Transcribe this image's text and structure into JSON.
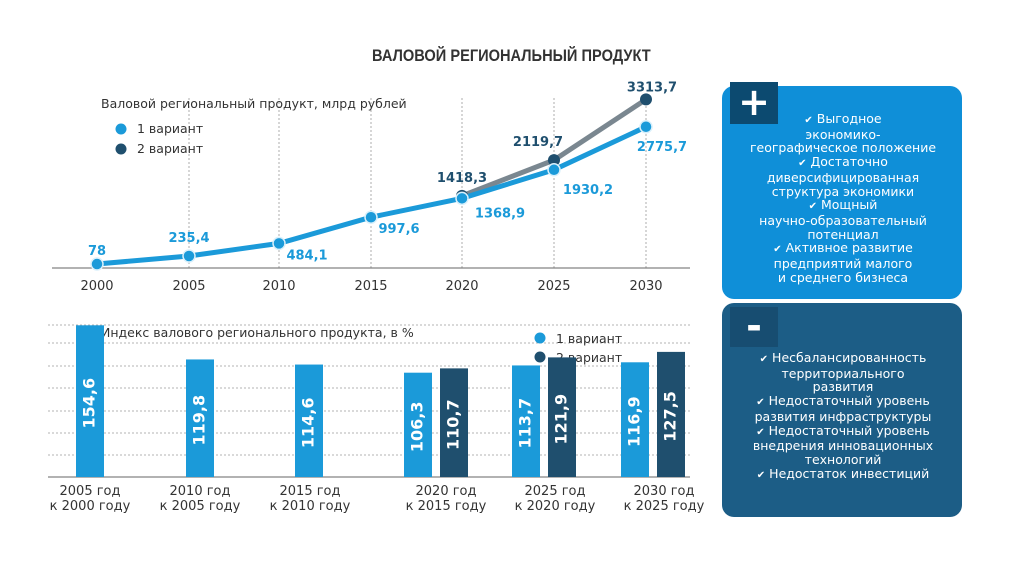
{
  "title": "ВАЛОВОЙ РЕГИОНАЛЬНЫЙ ПРОДУКТ",
  "colors": {
    "variant1": "#1b9ad9",
    "variant2": "#1f4f6e",
    "line2": "#7a8790",
    "plus_card": "#0f8fd8",
    "minus_card": "#1c5d86"
  },
  "chart_data": [
    {
      "type": "line",
      "title": "Валовой региональный продукт, млрд рублей",
      "categories": [
        "2000",
        "2005",
        "2010",
        "2015",
        "2020",
        "2025",
        "2030"
      ],
      "series": [
        {
          "name": "1 вариант",
          "values": [
            78,
            235.4,
            484.1,
            997.6,
            1368.9,
            1930.2,
            2775.7
          ],
          "labels": [
            "78",
            "235,4",
            "484,1",
            "997,6",
            "1368,9",
            "1930,2",
            "2775,7"
          ]
        },
        {
          "name": "2 вариант",
          "values": [
            null,
            null,
            null,
            null,
            1418.3,
            2119.7,
            3313.7
          ],
          "labels": [
            "",
            "",
            "",
            "",
            "1418,3",
            "2119,7",
            "3313,7"
          ]
        }
      ],
      "ylim": [
        0,
        3400
      ],
      "grid": "vertical dashed",
      "legend": "top-left"
    },
    {
      "type": "bar",
      "title": "Индекс валового регионального продукта, в %",
      "categories": [
        [
          "2005 год",
          "к 2000 году"
        ],
        [
          "2010 год",
          "к 2005 году"
        ],
        [
          "2015 год",
          "к 2010 году"
        ],
        [
          "2020 год",
          "к 2015 году"
        ],
        [
          "2025 год",
          "к 2020 году"
        ],
        [
          "2030 год",
          "к 2025 году"
        ]
      ],
      "series": [
        {
          "name": "1 вариант",
          "values": [
            154.6,
            119.8,
            114.6,
            106.3,
            113.7,
            116.9
          ],
          "labels": [
            "154,6",
            "119,8",
            "114,6",
            "106,3",
            "113,7",
            "116,9"
          ]
        },
        {
          "name": "2 вариант",
          "values": [
            null,
            null,
            null,
            110.7,
            121.9,
            127.5
          ],
          "labels": [
            "",
            "",
            "",
            "110,7",
            "121,9",
            "127,5"
          ]
        }
      ],
      "ylim": [
        0,
        160
      ],
      "grid": "horizontal dashed",
      "legend": "top-right"
    }
  ],
  "plus_card": {
    "symbol": "+",
    "items": [
      [
        "Выгодное",
        "экономико-",
        "географическое положение"
      ],
      [
        "Достаточно",
        "диверсифицированная",
        "структура экономики"
      ],
      [
        "Мощный",
        "научно-образовательный",
        "потенциал"
      ],
      [
        "Активное развитие",
        "предприятий малого",
        "и среднего бизнеса"
      ]
    ]
  },
  "minus_card": {
    "symbol": "-",
    "items": [
      [
        "Несбалансированность",
        "территориального",
        "развития"
      ],
      [
        "Недостаточный уровень",
        "развития инфраструктуры"
      ],
      [
        "Недостаточный уровень",
        "внедрения инновационных",
        "технологий"
      ],
      [
        "Недостаток инвестиций"
      ]
    ]
  }
}
